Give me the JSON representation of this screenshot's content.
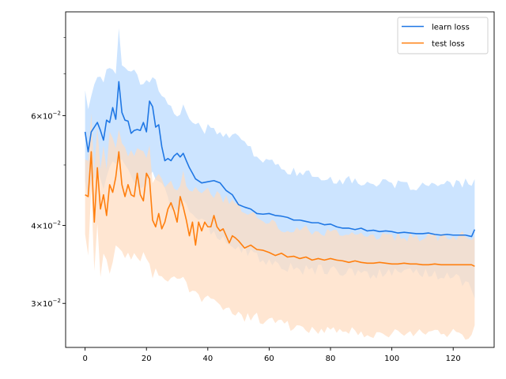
{
  "chart_data": {
    "type": "line",
    "title": "",
    "xlabel": "",
    "ylabel": "",
    "xlim": [
      -6.35,
      133.35
    ],
    "ylim": [
      0.0255,
      0.088
    ],
    "yscale": "log",
    "grid": false,
    "legend_position": "top-right",
    "xticks": [
      0,
      20,
      40,
      60,
      80,
      100,
      120
    ],
    "xtick_labels": [
      "0",
      "20",
      "40",
      "60",
      "80",
      "100",
      "120"
    ],
    "yticks_major": [
      0.03,
      0.04,
      0.06
    ],
    "ytick_major_labels": {
      "0.03": {
        "mant": "3",
        "exp": "−2"
      },
      "0.04": {
        "mant": "4",
        "exp": "−2"
      },
      "0.06": {
        "mant": "6",
        "exp": "−2"
      }
    },
    "yticks_minor": [
      0.05,
      0.07,
      0.08
    ],
    "series": [
      {
        "name": "learn loss",
        "color": "#1f77e4",
        "band_color": "#cce4ff",
        "keypoints": {
          "x": [
            0,
            1,
            2,
            3,
            4,
            5,
            6,
            7,
            8,
            9,
            10,
            11,
            12,
            13,
            14,
            15,
            16,
            17,
            18,
            19,
            20,
            21,
            22,
            23,
            24,
            25,
            26,
            27,
            28,
            29,
            30,
            31,
            32,
            33,
            34,
            35,
            36,
            38,
            40,
            42,
            44,
            46,
            48,
            50,
            52,
            54,
            56,
            58,
            60,
            62,
            64,
            66,
            68,
            70,
            72,
            74,
            76,
            78,
            80,
            82,
            84,
            86,
            88,
            90,
            92,
            94,
            96,
            98,
            100,
            102,
            104,
            106,
            108,
            110,
            112,
            114,
            116,
            118,
            120,
            122,
            124,
            126,
            127
          ],
          "y": [
            0.0565,
            0.0525,
            0.0565,
            0.0575,
            0.0585,
            0.0568,
            0.0548,
            0.059,
            0.0585,
            0.0618,
            0.0592,
            0.068,
            0.0607,
            0.059,
            0.0588,
            0.0562,
            0.0568,
            0.057,
            0.0568,
            0.0585,
            0.0565,
            0.0633,
            0.062,
            0.0575,
            0.058,
            0.0535,
            0.0508,
            0.0512,
            0.0508,
            0.0517,
            0.0522,
            0.0515,
            0.0522,
            0.0508,
            0.0495,
            0.0485,
            0.0475,
            0.0468,
            0.047,
            0.0472,
            0.0468,
            0.0455,
            0.0448,
            0.0432,
            0.0428,
            0.0425,
            0.0418,
            0.0417,
            0.0418,
            0.0415,
            0.0414,
            0.0412,
            0.0408,
            0.0408,
            0.0406,
            0.0404,
            0.0404,
            0.0401,
            0.0402,
            0.0398,
            0.0396,
            0.0396,
            0.0394,
            0.0396,
            0.0392,
            0.0393,
            0.0391,
            0.0392,
            0.0391,
            0.0389,
            0.039,
            0.0389,
            0.0388,
            0.0388,
            0.0389,
            0.0387,
            0.0386,
            0.0387,
            0.0386,
            0.0386,
            0.0386,
            0.0384,
            0.0394
          ]
        },
        "band_upper_keypoints": {
          "x": [
            0,
            1,
            2,
            4,
            6,
            8,
            10,
            11,
            12,
            14,
            16,
            18,
            20,
            22,
            24,
            26,
            28,
            30,
            32,
            34,
            36,
            38,
            40,
            44,
            48,
            52,
            56,
            60,
            64,
            70,
            80,
            90,
            100,
            110,
            120,
            127
          ],
          "y": [
            0.0665,
            0.0615,
            0.064,
            0.07,
            0.0685,
            0.072,
            0.0705,
            0.082,
            0.0735,
            0.0715,
            0.0705,
            0.068,
            0.068,
            0.0695,
            0.066,
            0.0635,
            0.0615,
            0.0605,
            0.0615,
            0.0595,
            0.0585,
            0.0565,
            0.0575,
            0.0565,
            0.0555,
            0.0545,
            0.0515,
            0.0505,
            0.0495,
            0.0485,
            0.0475,
            0.047,
            0.0465,
            0.0462,
            0.0465,
            0.047
          ]
        },
        "band_lower_keypoints": {
          "x": [
            0,
            1,
            2,
            4,
            6,
            8,
            10,
            12,
            14,
            16,
            18,
            20,
            22,
            24,
            26,
            28,
            30,
            32,
            34,
            36,
            38,
            40,
            44,
            48,
            52,
            56,
            60,
            64,
            70,
            80,
            90,
            100,
            110,
            120,
            126,
            127
          ],
          "y": [
            0.0465,
            0.0445,
            0.0475,
            0.049,
            0.0465,
            0.0495,
            0.051,
            0.0505,
            0.049,
            0.0465,
            0.0465,
            0.0475,
            0.0495,
            0.047,
            0.0455,
            0.043,
            0.0425,
            0.044,
            0.042,
            0.041,
            0.0405,
            0.0395,
            0.0385,
            0.0375,
            0.0365,
            0.0355,
            0.035,
            0.0345,
            0.034,
            0.034,
            0.0335,
            0.0335,
            0.0335,
            0.0332,
            0.032,
            0.031
          ]
        }
      },
      {
        "name": "test loss",
        "color": "#ff7f0e",
        "band_color": "#ffdcc0",
        "keypoints": {
          "x": [
            0,
            1,
            2,
            3,
            4,
            5,
            6,
            7,
            8,
            9,
            10,
            11,
            12,
            13,
            14,
            15,
            16,
            17,
            18,
            19,
            20,
            21,
            22,
            23,
            24,
            25,
            26,
            27,
            28,
            29,
            30,
            31,
            32,
            33,
            34,
            35,
            36,
            37,
            38,
            39,
            40,
            41,
            42,
            43,
            44,
            45,
            46,
            47,
            48,
            49,
            50,
            52,
            54,
            56,
            58,
            60,
            62,
            64,
            66,
            68,
            70,
            72,
            74,
            76,
            78,
            80,
            82,
            84,
            86,
            88,
            90,
            92,
            94,
            96,
            98,
            100,
            102,
            104,
            106,
            108,
            110,
            112,
            114,
            116,
            118,
            120,
            122,
            124,
            126,
            127
          ],
          "y": [
            0.0448,
            0.0445,
            0.0525,
            0.0405,
            0.0495,
            0.0425,
            0.0448,
            0.0415,
            0.0465,
            0.0452,
            0.0478,
            0.0525,
            0.0465,
            0.0445,
            0.0465,
            0.0448,
            0.0445,
            0.0485,
            0.0448,
            0.0438,
            0.0485,
            0.0475,
            0.0408,
            0.0398,
            0.0418,
            0.0395,
            0.0405,
            0.0425,
            0.0435,
            0.0422,
            0.0405,
            0.0445,
            0.0428,
            0.0408,
            0.0385,
            0.0405,
            0.0372,
            0.0405,
            0.0392,
            0.0405,
            0.0398,
            0.0398,
            0.0415,
            0.0398,
            0.0392,
            0.0395,
            0.0385,
            0.0375,
            0.0385,
            0.0382,
            0.0378,
            0.0368,
            0.0372,
            0.0366,
            0.0365,
            0.0362,
            0.0358,
            0.0361,
            0.0356,
            0.0357,
            0.0354,
            0.0356,
            0.0352,
            0.0354,
            0.0352,
            0.0354,
            0.0352,
            0.0351,
            0.0349,
            0.0351,
            0.0349,
            0.0348,
            0.0348,
            0.0349,
            0.0348,
            0.0347,
            0.0347,
            0.0348,
            0.0347,
            0.0347,
            0.0346,
            0.0346,
            0.0347,
            0.0346,
            0.0346,
            0.0346,
            0.0346,
            0.0346,
            0.0346,
            0.0344
          ]
        },
        "band_upper_keypoints": {
          "x": [
            0,
            1,
            2,
            3,
            4,
            5,
            6,
            7,
            8,
            10,
            11,
            12,
            14,
            16,
            18,
            20,
            21,
            22,
            23,
            24,
            26,
            28,
            30,
            32,
            34,
            36,
            38,
            40,
            44,
            48,
            52,
            56,
            60,
            64,
            70,
            80,
            90,
            100,
            110,
            120,
            127
          ],
          "y": [
            0.0515,
            0.0505,
            0.0615,
            0.0495,
            0.0575,
            0.0495,
            0.053,
            0.0485,
            0.056,
            0.054,
            0.057,
            0.0535,
            0.0525,
            0.0525,
            0.0525,
            0.051,
            0.0535,
            0.047,
            0.047,
            0.0485,
            0.0455,
            0.0475,
            0.0455,
            0.0485,
            0.0455,
            0.0455,
            0.0445,
            0.0455,
            0.0445,
            0.0435,
            0.0425,
            0.0415,
            0.0405,
            0.0395,
            0.0395,
            0.039,
            0.0385,
            0.0385,
            0.0382,
            0.0385,
            0.0385
          ]
        },
        "band_lower_keypoints": {
          "x": [
            0,
            1,
            2,
            3,
            4,
            5,
            6,
            8,
            10,
            12,
            14,
            16,
            18,
            20,
            22,
            24,
            26,
            28,
            30,
            32,
            34,
            36,
            38,
            40,
            44,
            48,
            52,
            56,
            60,
            64,
            70,
            80,
            90,
            100,
            110,
            120,
            126,
            127
          ],
          "y": [
            0.038,
            0.0365,
            0.045,
            0.0335,
            0.0405,
            0.033,
            0.0365,
            0.034,
            0.0365,
            0.0365,
            0.0355,
            0.0355,
            0.0355,
            0.036,
            0.0335,
            0.0335,
            0.0325,
            0.0335,
            0.0325,
            0.0325,
            0.0315,
            0.031,
            0.0305,
            0.0305,
            0.03,
            0.029,
            0.0285,
            0.0285,
            0.028,
            0.0278,
            0.0275,
            0.0272,
            0.027,
            0.0268,
            0.0268,
            0.0268,
            0.0266,
            0.0274
          ]
        }
      }
    ]
  }
}
